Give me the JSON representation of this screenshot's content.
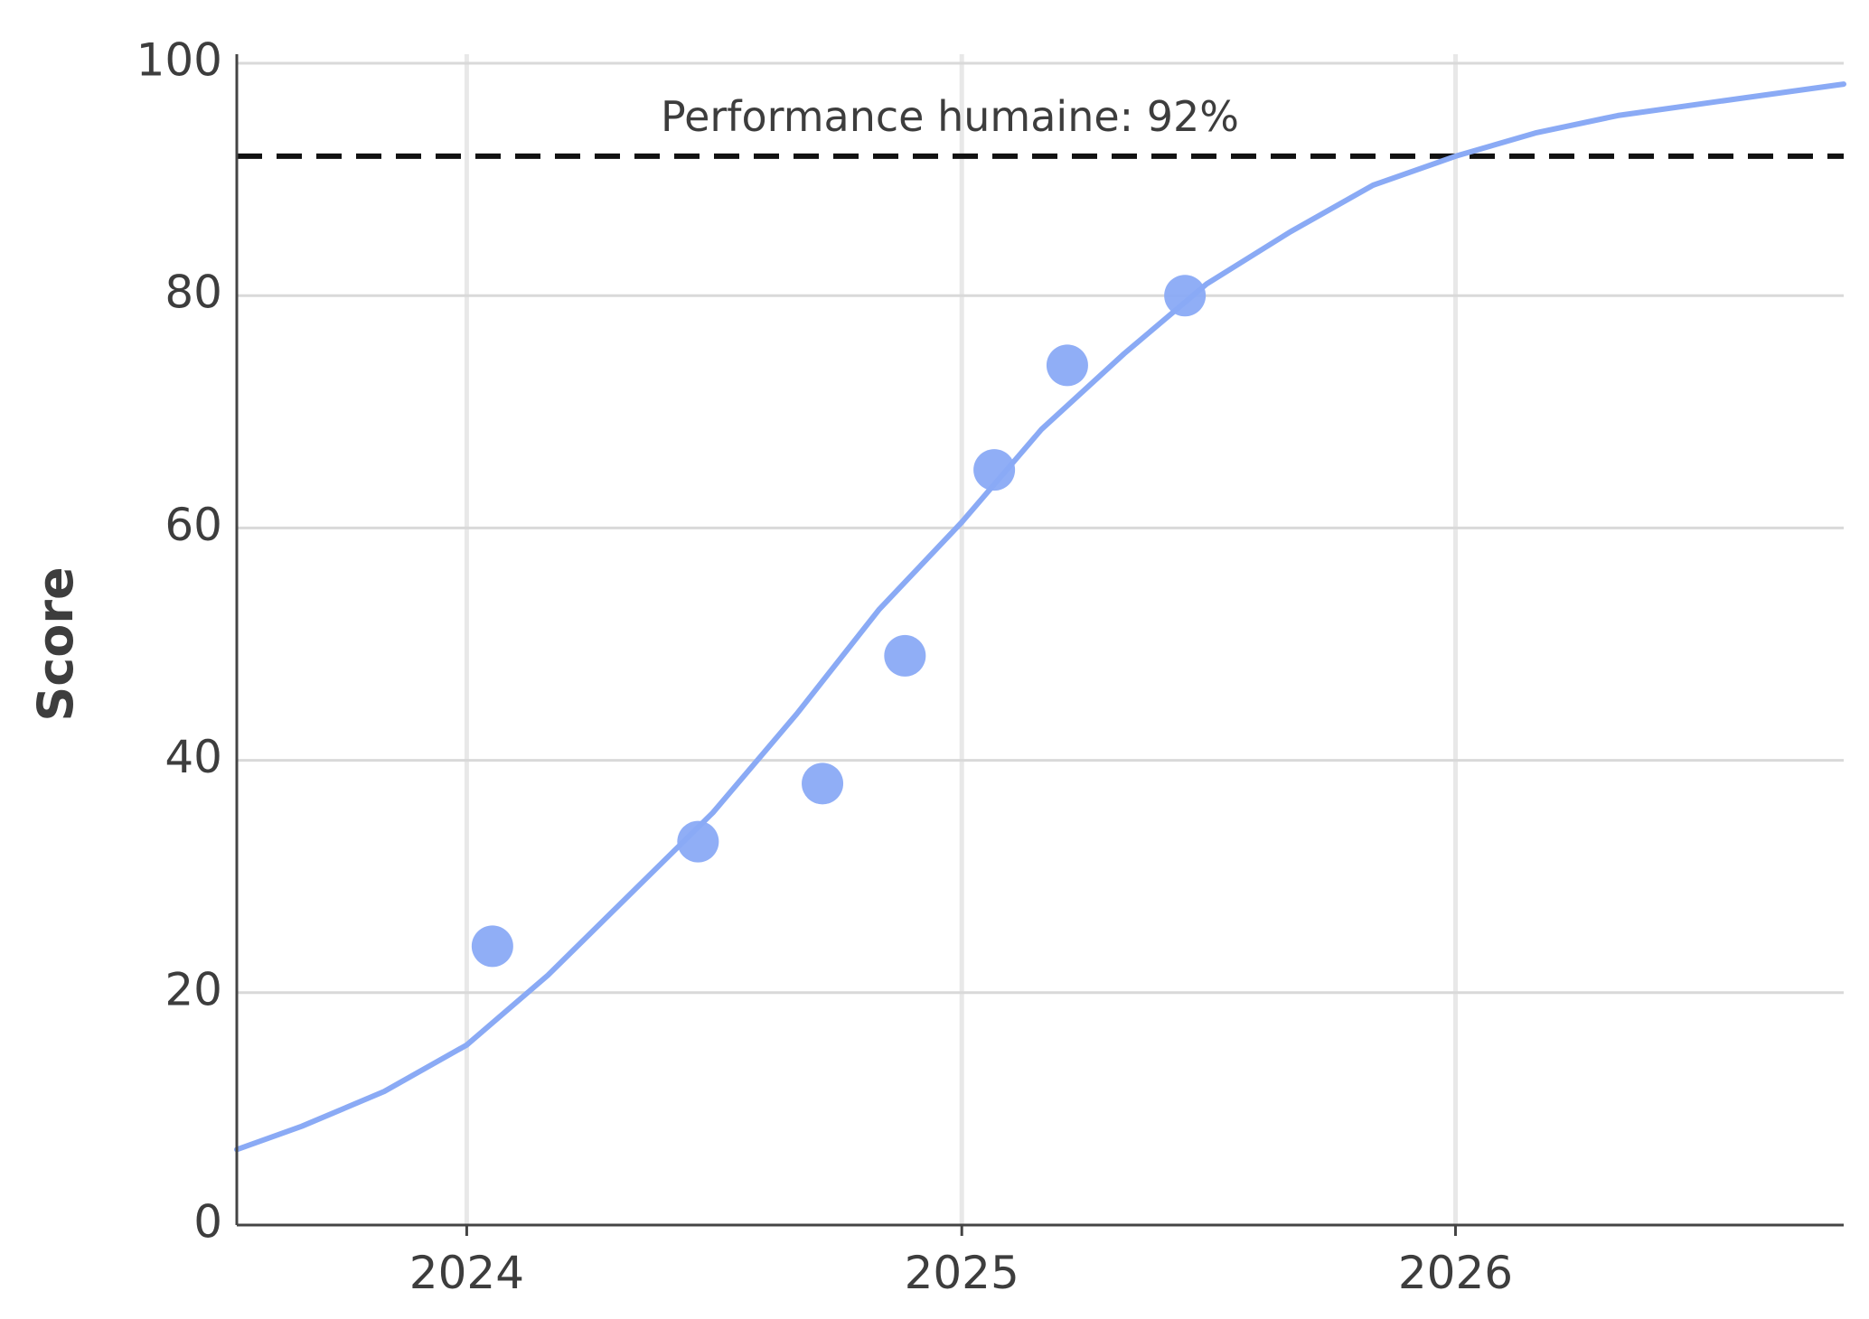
{
  "chart_data": {
    "type": "scatter",
    "title": "",
    "xlabel": "",
    "ylabel": "Score",
    "x_type": "date",
    "xlim": [
      "2023-07-15",
      "2026-10-15"
    ],
    "ylim": [
      0,
      100
    ],
    "x_ticks": [
      {
        "value": "2024-01-01",
        "label": "2024"
      },
      {
        "value": "2025-01-01",
        "label": "2025"
      },
      {
        "value": "2026-01-01",
        "label": "2026"
      }
    ],
    "y_ticks": [
      0,
      20,
      40,
      60,
      80,
      100
    ],
    "grid": true,
    "legend": "none",
    "series_color": "#8aaaf5",
    "reference_line": {
      "y": 92,
      "label": "Performance humaine: 92%",
      "style": "dashed",
      "color": "#111111"
    },
    "series": [
      {
        "type": "scatter",
        "points": [
          {
            "x": "2024-01-20",
            "y": 24
          },
          {
            "x": "2024-06-20",
            "y": 33
          },
          {
            "x": "2024-09-20",
            "y": 38
          },
          {
            "x": "2024-11-20",
            "y": 49
          },
          {
            "x": "2025-01-25",
            "y": 65
          },
          {
            "x": "2025-03-20",
            "y": 74
          },
          {
            "x": "2025-06-15",
            "y": 80
          }
        ]
      },
      {
        "type": "line",
        "points": [
          {
            "x": "2023-07-15",
            "y": 6.5
          },
          {
            "x": "2023-09-01",
            "y": 8.5
          },
          {
            "x": "2023-11-01",
            "y": 11.5
          },
          {
            "x": "2024-01-01",
            "y": 15.5
          },
          {
            "x": "2024-03-01",
            "y": 21.5
          },
          {
            "x": "2024-05-01",
            "y": 28.5
          },
          {
            "x": "2024-07-01",
            "y": 35.5
          },
          {
            "x": "2024-09-01",
            "y": 44
          },
          {
            "x": "2024-11-01",
            "y": 53
          },
          {
            "x": "2025-01-01",
            "y": 60.5
          },
          {
            "x": "2025-03-01",
            "y": 68.5
          },
          {
            "x": "2025-05-01",
            "y": 75
          },
          {
            "x": "2025-07-01",
            "y": 81
          },
          {
            "x": "2025-09-01",
            "y": 85.5
          },
          {
            "x": "2025-11-01",
            "y": 89.5
          },
          {
            "x": "2026-01-01",
            "y": 92
          },
          {
            "x": "2026-03-01",
            "y": 94
          },
          {
            "x": "2026-05-01",
            "y": 95.5
          },
          {
            "x": "2026-08-01",
            "y": 97
          },
          {
            "x": "2026-10-15",
            "y": 98.2
          }
        ]
      }
    ]
  }
}
